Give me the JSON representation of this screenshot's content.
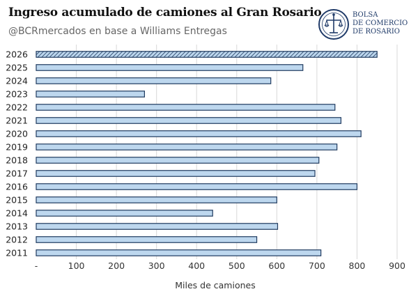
{
  "header": {
    "title": "Ingreso acumulado de camiones al Gran Rosario",
    "subtitle": "@BCRmercados en base a Williams Entregas"
  },
  "logo": {
    "lines": [
      "BOLSA",
      "DE COMERCIO",
      "DE ROSARIO"
    ],
    "color": "#1f3a68"
  },
  "chart_data": {
    "type": "bar",
    "orientation": "horizontal",
    "categories": [
      "2026",
      "2025",
      "2024",
      "2023",
      "2022",
      "2021",
      "2020",
      "2019",
      "2018",
      "2017",
      "2016",
      "2015",
      "2014",
      "2013",
      "2012",
      "2011"
    ],
    "values": [
      850,
      665,
      585,
      270,
      745,
      760,
      810,
      750,
      705,
      695,
      800,
      600,
      440,
      602,
      550,
      710
    ],
    "highlight_category": "2026",
    "xlabel": "Miles de camiones",
    "xlim": [
      0,
      900
    ],
    "xticks": [
      0,
      100,
      200,
      300,
      400,
      500,
      600,
      700,
      800,
      900
    ],
    "xtick_labels": [
      "-",
      "100",
      "200",
      "300",
      "400",
      "500",
      "600",
      "700",
      "800",
      "900"
    ],
    "grid": true,
    "bar_fill": "#bdd7ee",
    "bar_stroke": "#1f3a5f"
  }
}
